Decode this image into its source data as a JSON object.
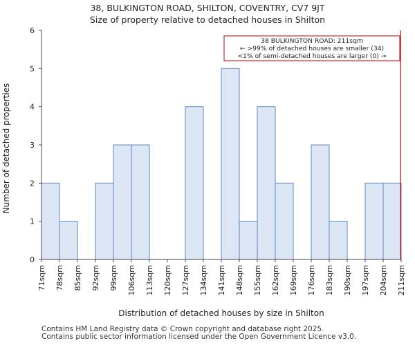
{
  "chart_data": {
    "type": "bar",
    "title": "38, BULKINGTON ROAD, SHILTON, COVENTRY, CV7 9JT",
    "subtitle": "Size of property relative to detached houses in Shilton",
    "xlabel": "Distribution of detached houses by size in Shilton",
    "ylabel": "Number of detached properties",
    "ylim": [
      0,
      6
    ],
    "yticks": [
      0,
      1,
      2,
      3,
      4,
      5,
      6
    ],
    "bin_edges": [
      "71sqm",
      "78sqm",
      "85sqm",
      "92sqm",
      "99sqm",
      "106sqm",
      "113sqm",
      "120sqm",
      "127sqm",
      "134sqm",
      "141sqm",
      "148sqm",
      "155sqm",
      "162sqm",
      "169sqm",
      "176sqm",
      "183sqm",
      "190sqm",
      "197sqm",
      "204sqm",
      "211sqm"
    ],
    "values": [
      2,
      1,
      0,
      2,
      3,
      3,
      0,
      0,
      4,
      0,
      5,
      1,
      4,
      2,
      0,
      3,
      1,
      0,
      2,
      2
    ],
    "marker": {
      "bin_position": 20
    },
    "annotation": [
      "38 BULKINGTON ROAD: 211sqm",
      "← >99% of detached houses are smaller (34)",
      "<1% of semi-detached houses are larger (0) →"
    ],
    "bar_fill": "#dce6f4",
    "bar_stroke": "#5a87c6",
    "marker_color": "#c00000",
    "grid": false
  },
  "footer": [
    "Contains HM Land Registry data © Crown copyright and database right 2025.",
    "Contains public sector information licensed under the Open Government Licence v3.0."
  ]
}
